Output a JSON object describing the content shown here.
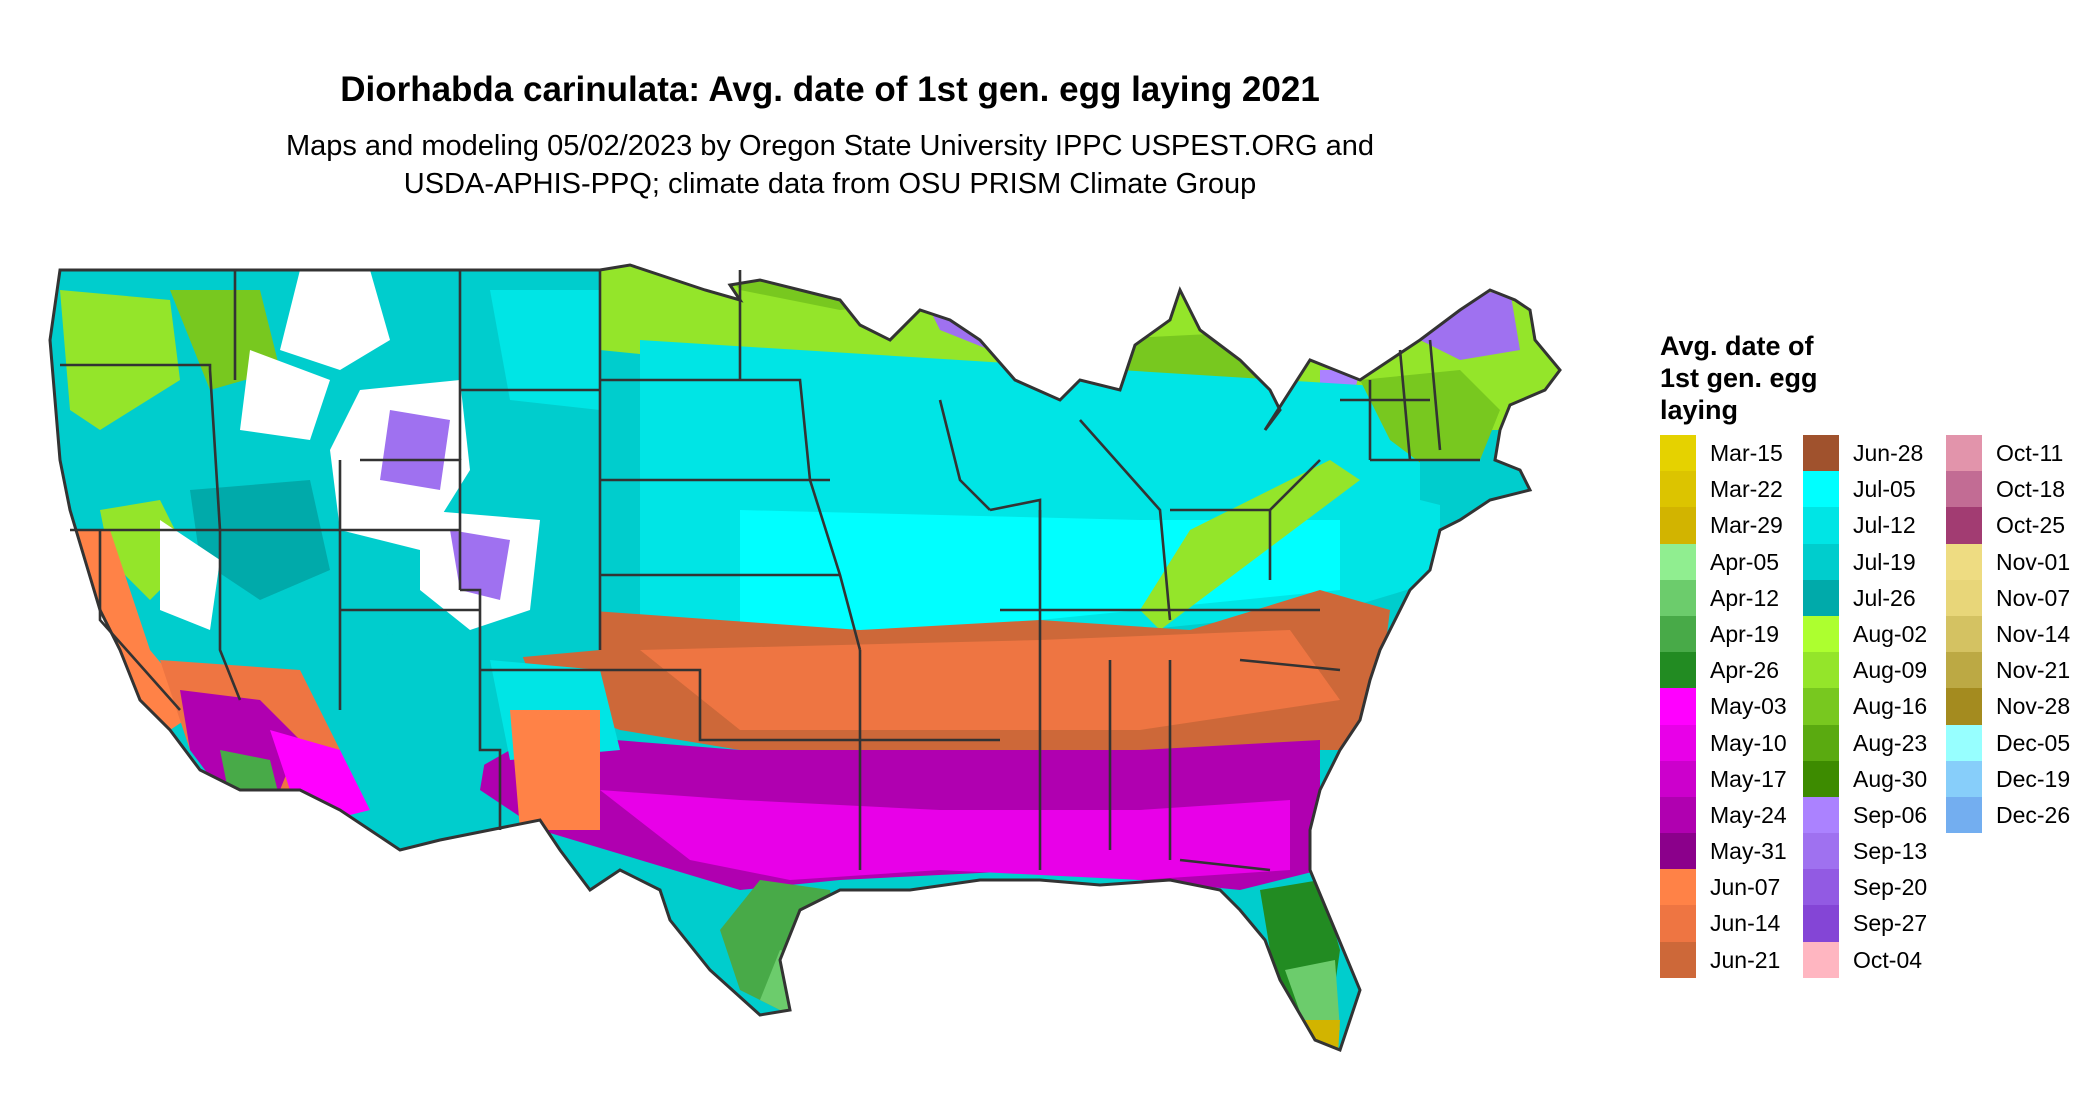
{
  "title": "Diorhabda carinulata: Avg. date of 1st gen. egg laying 2021",
  "subtitle": {
    "line1": "Maps and modeling 05/02/2023 by Oregon State University IPPC USPEST.ORG and",
    "line2": "USDA-APHIS-PPQ; climate data from OSU PRISM Climate Group"
  },
  "map": {
    "region": "Continental United States",
    "colors": {
      "no_data": "#ffffff",
      "state_border": "#333333",
      "mountain_purple": "#9f6fe0"
    }
  },
  "legend": {
    "title_lines": [
      "Avg. date of",
      "1st gen. egg",
      "laying"
    ],
    "columns": [
      [
        {
          "label": "Mar-15",
          "color": "#e5d200"
        },
        {
          "label": "Mar-22",
          "color": "#dcc400"
        },
        {
          "label": "Mar-29",
          "color": "#d2b400"
        },
        {
          "label": "Apr-05",
          "color": "#90ee90"
        },
        {
          "label": "Apr-12",
          "color": "#6ccc6c"
        },
        {
          "label": "Apr-19",
          "color": "#48aa48"
        },
        {
          "label": "Apr-26",
          "color": "#228b22"
        },
        {
          "label": "May-03",
          "color": "#ff00ff"
        },
        {
          "label": "May-10",
          "color": "#e800e8"
        },
        {
          "label": "May-17",
          "color": "#cc00cc"
        },
        {
          "label": "May-24",
          "color": "#b000b0"
        },
        {
          "label": "May-31",
          "color": "#8b008b"
        },
        {
          "label": "Jun-07",
          "color": "#ff8247"
        },
        {
          "label": "Jun-14",
          "color": "#ee7542"
        },
        {
          "label": "Jun-21",
          "color": "#cd6839"
        }
      ],
      [
        {
          "label": "Jun-28",
          "color": "#a0522d"
        },
        {
          "label": "Jul-05",
          "color": "#00ffff"
        },
        {
          "label": "Jul-12",
          "color": "#00e5e5"
        },
        {
          "label": "Jul-19",
          "color": "#00cdcd"
        },
        {
          "label": "Jul-26",
          "color": "#00aaaa"
        },
        {
          "label": "Aug-02",
          "color": "#adff2f"
        },
        {
          "label": "Aug-09",
          "color": "#94e52a"
        },
        {
          "label": "Aug-16",
          "color": "#78c81f"
        },
        {
          "label": "Aug-23",
          "color": "#5aaa10"
        },
        {
          "label": "Aug-30",
          "color": "#3d8b00"
        },
        {
          "label": "Sep-06",
          "color": "#ab82ff"
        },
        {
          "label": "Sep-13",
          "color": "#9f71f0"
        },
        {
          "label": "Sep-20",
          "color": "#925ae3"
        },
        {
          "label": "Sep-27",
          "color": "#8445d6"
        },
        {
          "label": "Oct-04",
          "color": "#ffb6c1"
        }
      ],
      [
        {
          "label": "Oct-11",
          "color": "#e294ab"
        },
        {
          "label": "Oct-18",
          "color": "#c26c94"
        },
        {
          "label": "Oct-25",
          "color": "#a23c72"
        },
        {
          "label": "Nov-01",
          "color": "#eedc82"
        },
        {
          "label": "Nov-07",
          "color": "#e8d679"
        },
        {
          "label": "Nov-14",
          "color": "#d4c262"
        },
        {
          "label": "Nov-21",
          "color": "#bca944"
        },
        {
          "label": "Nov-28",
          "color": "#a48b1f"
        },
        {
          "label": "Dec-05",
          "color": "#97ffff"
        },
        {
          "label": "Dec-19",
          "color": "#87cefa"
        },
        {
          "label": "Dec-26",
          "color": "#73aef0"
        }
      ]
    ]
  }
}
